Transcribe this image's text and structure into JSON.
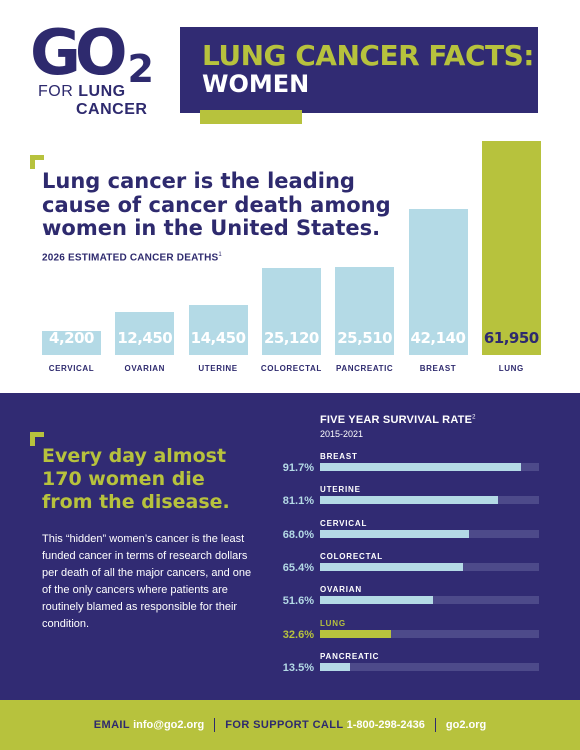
{
  "logo": {
    "mark": "GO",
    "sub": "2",
    "for": "FOR",
    "lung": "LUNG",
    "cancer": "CANCER"
  },
  "header": {
    "title_line1": "LUNG CANCER FACTS:",
    "title_line2": "WOMEN"
  },
  "headline": "Lung cancer is the leading cause of cancer death among women in the United States.",
  "chart_data": [
    {
      "type": "bar",
      "title": "2026 ESTIMATED CANCER DEATHS",
      "title_note": "1",
      "categories": [
        "CERVICAL",
        "OVARIAN",
        "UTERINE",
        "COLORECTAL",
        "PANCREATIC",
        "BREAST",
        "LUNG"
      ],
      "values": [
        4200,
        12450,
        14450,
        25120,
        25510,
        42140,
        61950
      ],
      "value_labels": [
        "4,200",
        "12,450",
        "14,450",
        "25,120",
        "25,510",
        "42,140",
        "61,950"
      ],
      "highlight": "LUNG",
      "colors": {
        "default": "#b4dae6",
        "highlight": "#b7c23d"
      },
      "xlabel": "",
      "ylabel": "",
      "ylim": [
        0,
        61950
      ]
    },
    {
      "type": "bar",
      "orientation": "horizontal",
      "title": "FIVE YEAR SURVIVAL RATE",
      "title_note": "2",
      "subtitle": "2015-2021",
      "categories": [
        "BREAST",
        "UTERINE",
        "CERVICAL",
        "COLORECTAL",
        "OVARIAN",
        "LUNG",
        "PANCREATIC"
      ],
      "values": [
        91.7,
        81.1,
        68.0,
        65.4,
        51.6,
        32.6,
        13.5
      ],
      "value_labels": [
        "91.7%",
        "81.1%",
        "68.0%",
        "65.4%",
        "51.6%",
        "32.6%",
        "13.5%"
      ],
      "highlight": "LUNG",
      "xlim": [
        0,
        100
      ]
    }
  ],
  "left_panel": {
    "tagline": "Every day almost 170 women die from the disease.",
    "body": "This “hidden” women’s cancer is the least funded cancer in terms of research dollars per death of all the major cancers, and one of the only cancers where patients are routinely blamed as responsible for their condition."
  },
  "footer": {
    "email_label": "EMAIL",
    "email": "info@go2.org",
    "support_label": "FOR SUPPORT CALL",
    "phone": "1-800-298-2436",
    "site": "go2.org"
  },
  "colors": {
    "navy": "#312b73",
    "green": "#b7c23d",
    "light_blue": "#b4dae6"
  }
}
